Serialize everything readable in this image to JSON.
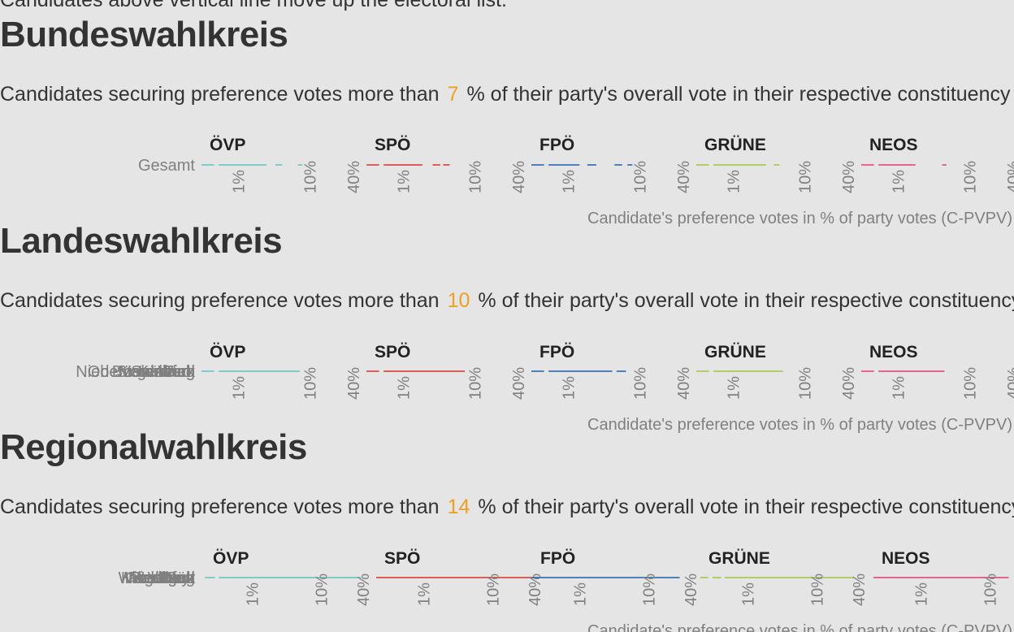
{
  "page": {
    "cutline": "Candidates above vertical line move up the electoral list."
  },
  "sections": [
    {
      "title": "Bundeswahlkreis",
      "subtitle_before": "Candidates securing preference votes more than",
      "threshold": "7",
      "subtitle_after": "% of their party's overall vote in their respective constituency"
    },
    {
      "title": "Landeswahlkreis",
      "subtitle_before": "Candidates securing preference votes more than",
      "threshold": "10",
      "subtitle_after": "% of their party's overall vote in their respective constituency"
    },
    {
      "title": "Regionalwahlkreis",
      "subtitle_before": "Candidates securing preference votes more than",
      "threshold": "14",
      "subtitle_after": "% of their party's overall vote in their respective constituency"
    }
  ],
  "colors": {
    "ÖVP": "#5fc4c0",
    "SPÖ": "#d7302a",
    "FPÖ": "#1f5ea8",
    "GRÜNE": "#9bc63b",
    "NEOS": "#e23d6c",
    "threshold": "#f0a020"
  },
  "chart_data": [
    {
      "type": "scatter",
      "scale": "log",
      "xlim": [
        0.3,
        40
      ],
      "tick_labels": [
        "1%",
        "10%",
        "40%"
      ],
      "tick_values": [
        1,
        10,
        40
      ],
      "xlabel": "Candidate's preference votes in % of party votes (C-PVPV)",
      "rows": [
        "Gesamt"
      ],
      "series": [
        {
          "name": "ÖVP",
          "segments": [
            [
              0.3,
              0.45
            ],
            [
              0.52,
              2.4
            ],
            [
              3.2,
              4.0
            ],
            [
              6.6,
              7.6
            ]
          ]
        },
        {
          "name": "SPÖ",
          "segments": [
            [
              0.3,
              0.45
            ],
            [
              0.52,
              1.8
            ],
            [
              2.5,
              3.2
            ],
            [
              3.5,
              4.3
            ]
          ]
        },
        {
          "name": "FPÖ",
          "segments": [
            [
              0.3,
              0.45
            ],
            [
              0.52,
              1.4
            ],
            [
              1.8,
              2.4
            ],
            [
              4.3,
              5.5
            ],
            [
              6.5,
              7.6
            ]
          ]
        },
        {
          "name": "GRÜNE",
          "segments": [
            [
              0.3,
              0.45
            ],
            [
              0.52,
              2.8
            ],
            [
              3.6,
              4.3
            ]
          ]
        },
        {
          "name": "NEOS",
          "segments": [
            [
              0.3,
              0.45
            ],
            [
              0.52,
              1.7
            ],
            [
              4.0,
              4.6
            ]
          ]
        }
      ]
    },
    {
      "type": "scatter",
      "scale": "log",
      "xlim": [
        0.3,
        40
      ],
      "tick_labels": [
        "1%",
        "10%",
        "40%"
      ],
      "tick_values": [
        1,
        10,
        40
      ],
      "xlabel": "Candidate's preference votes in % of party votes (C-PVPV)",
      "rows": [
        "Oberösterreich",
        "Steiermark",
        "Tirol",
        "Wien",
        "Vorarlberg",
        "Salzburg",
        "Kärnten",
        "Burgenland",
        "Niederösterreich"
      ],
      "series": [
        {
          "name": "ÖVP",
          "segments": [
            [
              0.3,
              0.45
            ],
            [
              0.52,
              7.0
            ]
          ]
        },
        {
          "name": "SPÖ",
          "segments": [
            [
              0.3,
              0.45
            ],
            [
              0.52,
              7.0
            ]
          ]
        },
        {
          "name": "FPÖ",
          "segments": [
            [
              0.3,
              0.45
            ],
            [
              0.52,
              4.0
            ],
            [
              4.6,
              6.2
            ]
          ]
        },
        {
          "name": "GRÜNE",
          "segments": [
            [
              0.3,
              0.45
            ],
            [
              0.52,
              4.8
            ]
          ]
        },
        {
          "name": "NEOS",
          "segments": [
            [
              0.3,
              0.45
            ],
            [
              0.52,
              4.3
            ]
          ]
        }
      ]
    },
    {
      "type": "scatter",
      "scale": "log",
      "xlim": [
        0.2,
        40
      ],
      "tick_labels": [
        "1%",
        "10%",
        "40%"
      ],
      "tick_values": [
        1,
        10,
        40
      ],
      "xlabel": "Candidate's preference votes in % of party votes (C-PVPV)",
      "rows": [
        "Lungau",
        "Flachgau",
        "Graz",
        "Innsbruck",
        "Linz",
        "Salzburg",
        "Wien Nord",
        "Wien Süd",
        "Klagenfurt",
        "Villach",
        "Steyr"
      ],
      "series": [
        {
          "name": "ÖVP",
          "segments": [
            [
              0.2,
              0.28
            ],
            [
              0.32,
              36
            ]
          ]
        },
        {
          "name": "SPÖ",
          "segments": [
            [
              0.2,
              36
            ]
          ]
        },
        {
          "name": "FPÖ",
          "segments": [
            [
              0.2,
              27
            ]
          ]
        },
        {
          "name": "GRÜNE",
          "segments": [
            [
              0.2,
              0.26
            ],
            [
              0.3,
              0.4
            ],
            [
              0.45,
              33
            ]
          ]
        },
        {
          "name": "NEOS",
          "segments": [
            [
              0.2,
              18
            ],
            [
              24,
              38
            ]
          ]
        }
      ]
    }
  ]
}
